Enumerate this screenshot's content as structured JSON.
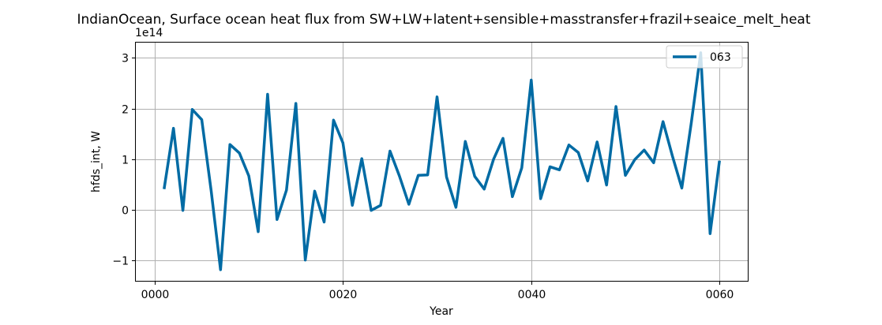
{
  "chart_data": {
    "type": "line",
    "title": "IndianOcean, Surface ocean heat flux from SW+LW+latent+sensible+masstransfer+frazil+seaice_melt_heat",
    "xlabel": "Year",
    "ylabel": "hfds_int, W",
    "y_offset_label": "1e14",
    "y_scale_factor": 100000000000000.0,
    "xlim": [
      -2,
      63
    ],
    "ylim": [
      -1.4,
      3.3
    ],
    "x_ticks": [
      0,
      20,
      40,
      60
    ],
    "x_tick_labels": [
      "0000",
      "0020",
      "0040",
      "0060"
    ],
    "y_ticks": [
      -1,
      0,
      1,
      2,
      3
    ],
    "y_tick_labels": [
      "−1",
      "0",
      "1",
      "2",
      "3"
    ],
    "grid": true,
    "legend_position": "top-right",
    "series": [
      {
        "name": "063",
        "color": "#006ba4",
        "x": [
          1,
          2,
          3,
          4,
          5,
          6,
          7,
          8,
          9,
          10,
          11,
          12,
          13,
          14,
          15,
          16,
          17,
          18,
          19,
          20,
          21,
          22,
          23,
          24,
          25,
          26,
          27,
          28,
          29,
          30,
          31,
          32,
          33,
          34,
          35,
          36,
          37,
          38,
          39,
          40,
          41,
          42,
          43,
          44,
          45,
          46,
          47,
          48,
          49,
          50,
          51,
          52,
          53,
          54,
          55,
          56,
          57,
          58,
          59,
          60
        ],
        "y": [
          0.41,
          1.61,
          -0.01,
          1.98,
          1.78,
          0.38,
          -1.18,
          1.29,
          1.12,
          0.67,
          -0.43,
          2.28,
          -0.19,
          0.39,
          2.1,
          -0.99,
          0.37,
          -0.24,
          1.77,
          1.32,
          0.09,
          1.01,
          -0.01,
          0.09,
          1.16,
          0.67,
          0.11,
          0.68,
          0.69,
          2.23,
          0.65,
          0.05,
          1.35,
          0.66,
          0.41,
          1.0,
          1.41,
          0.26,
          0.83,
          2.56,
          0.22,
          0.85,
          0.79,
          1.28,
          1.13,
          0.57,
          1.34,
          0.49,
          2.04,
          0.68,
          0.99,
          1.18,
          0.93,
          1.74,
          1.06,
          0.43,
          1.72,
          3.1,
          -0.47,
          0.97
        ]
      }
    ]
  }
}
